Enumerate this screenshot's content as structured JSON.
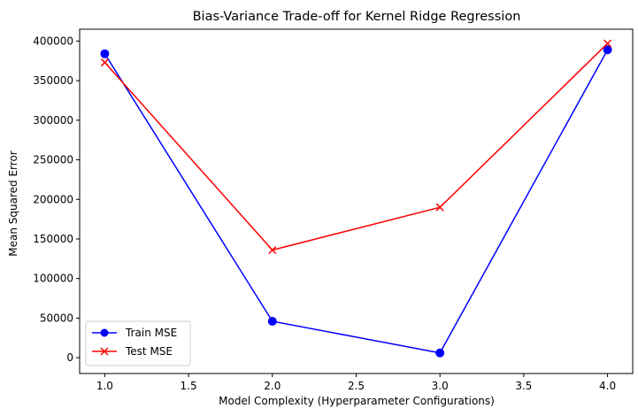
{
  "chart_data": {
    "type": "line",
    "title": "Bias-Variance Trade-off for Kernel Ridge Regression",
    "xlabel": "Model Complexity (Hyperparameter Configurations)",
    "ylabel": "Mean Squared Error",
    "xlim": [
      0.85,
      4.15
    ],
    "ylim": [
      -20000,
      415000
    ],
    "x_ticks": [
      1.0,
      1.5,
      2.0,
      2.5,
      3.0,
      3.5,
      4.0
    ],
    "x_tick_labels": [
      "1.0",
      "1.5",
      "2.0",
      "2.5",
      "3.0",
      "3.5",
      "4.0"
    ],
    "y_ticks": [
      0,
      50000,
      100000,
      150000,
      200000,
      250000,
      300000,
      350000,
      400000
    ],
    "y_tick_labels": [
      "0",
      "50000",
      "100000",
      "150000",
      "200000",
      "250000",
      "300000",
      "350000",
      "400000"
    ],
    "grid": false,
    "legend_position": "lower-left",
    "x": [
      1.0,
      2.0,
      3.0,
      4.0
    ],
    "series": [
      {
        "name": "Train MSE",
        "color": "#0000ff",
        "marker": "circle",
        "values": [
          384000,
          46000,
          6000,
          389000
        ]
      },
      {
        "name": "Test MSE",
        "color": "#ff0000",
        "marker": "x",
        "values": [
          373000,
          136000,
          190000,
          397000
        ]
      }
    ]
  }
}
